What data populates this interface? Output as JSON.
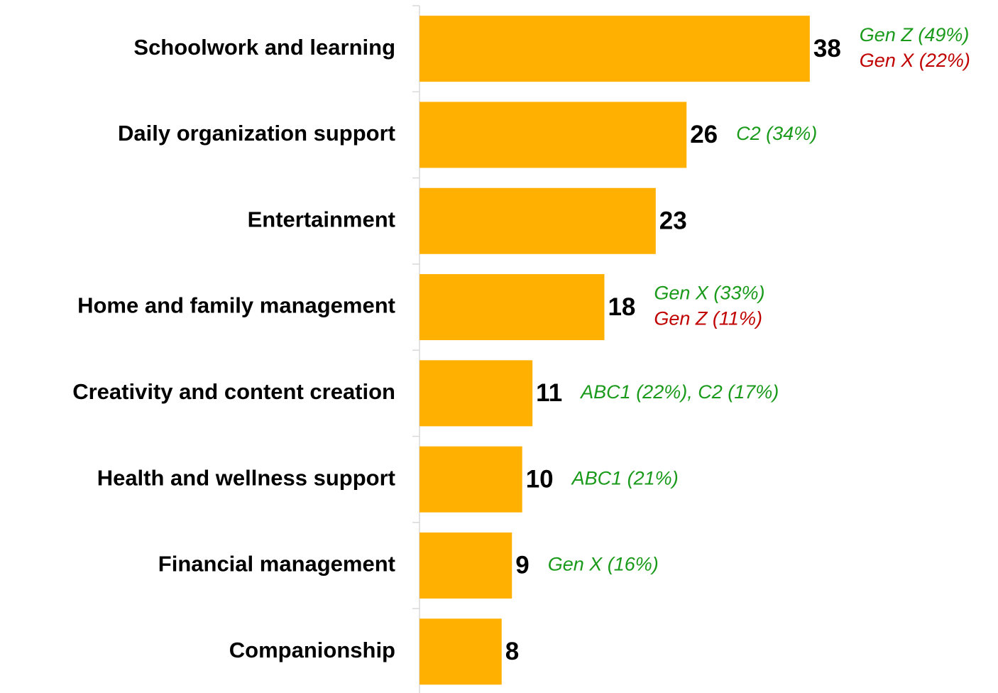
{
  "chart_data": {
    "type": "bar",
    "orientation": "horizontal",
    "color": "#FFB000",
    "categories": [
      "Schoolwork and learning",
      "Daily organization support",
      "Entertainment",
      "Home and family management",
      "Creativity and content creation",
      "Health and wellness support",
      "Financial management",
      "Companionship"
    ],
    "values": [
      38,
      26,
      23,
      18,
      11,
      10,
      9,
      8
    ],
    "annotations": [
      [
        {
          "text": "Gen Z (49%)",
          "color": "#1a9a1a"
        },
        {
          "text": "Gen X (22%)",
          "color": "#c00000"
        }
      ],
      [
        {
          "text": "C2 (34%)",
          "color": "#1a9a1a"
        }
      ],
      [],
      [
        {
          "text": "Gen X (33%)",
          "color": "#1a9a1a"
        },
        {
          "text": "Gen Z (11%)",
          "color": "#c00000"
        }
      ],
      [
        {
          "text": "ABC1 (22%), C2 (17%)",
          "color": "#1a9a1a"
        }
      ],
      [
        {
          "text": "ABC1 (21%)",
          "color": "#1a9a1a"
        }
      ],
      [
        {
          "text": "Gen X (16%)",
          "color": "#1a9a1a"
        }
      ],
      []
    ]
  }
}
